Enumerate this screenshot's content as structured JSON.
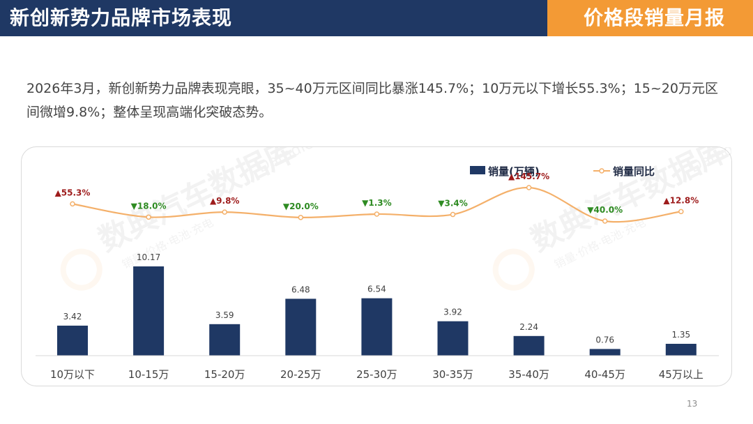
{
  "header": {
    "title": "新创新势力品牌市场表现",
    "badge": "价格段销量月报"
  },
  "summary": "2026年3月，新创新势力品牌表现亮眼，35~40万元区间同比暴涨145.7%；10万元以下增长55.3%；15~20万元区间微增9.8%；整体呈现高端化突破态势。",
  "page_number": "13",
  "watermark": {
    "main": "数典汽车数据库",
    "sub": "销量·价格·电池·充电",
    "brand": "Datadic"
  },
  "colors": {
    "navy": "#1f3864",
    "orange": "#f39a35",
    "line": "#f4b06a",
    "up": "#9e1c1c",
    "down": "#2e8b22"
  },
  "chart_data": {
    "type": "bar",
    "categories": [
      "10万以下",
      "10-15万",
      "15-20万",
      "20-25万",
      "25-30万",
      "30-35万",
      "35-40万",
      "40-45万",
      "45万以上"
    ],
    "series": [
      {
        "name": "销量(万辆)",
        "type": "bar",
        "values": [
          3.42,
          10.17,
          3.59,
          6.48,
          6.54,
          3.92,
          2.24,
          0.76,
          1.35
        ],
        "labels": [
          "3.42",
          "10.17",
          "3.59",
          "6.48",
          "6.54",
          "3.92",
          "2.24",
          "0.76",
          "1.35"
        ]
      },
      {
        "name": "销量同比",
        "type": "line",
        "unit": "%",
        "values": [
          55.3,
          -18.0,
          9.8,
          -20.0,
          -1.3,
          -3.4,
          145.7,
          -40.0,
          12.8
        ],
        "labels": [
          "▲55.3%",
          "▼18.0%",
          "▲9.8%",
          "▼20.0%",
          "▼1.3%",
          "▼3.4%",
          "▲145.7%",
          "▼40.0%",
          "▲12.8%"
        ]
      }
    ],
    "legend_position": "top-right",
    "grid": false
  }
}
